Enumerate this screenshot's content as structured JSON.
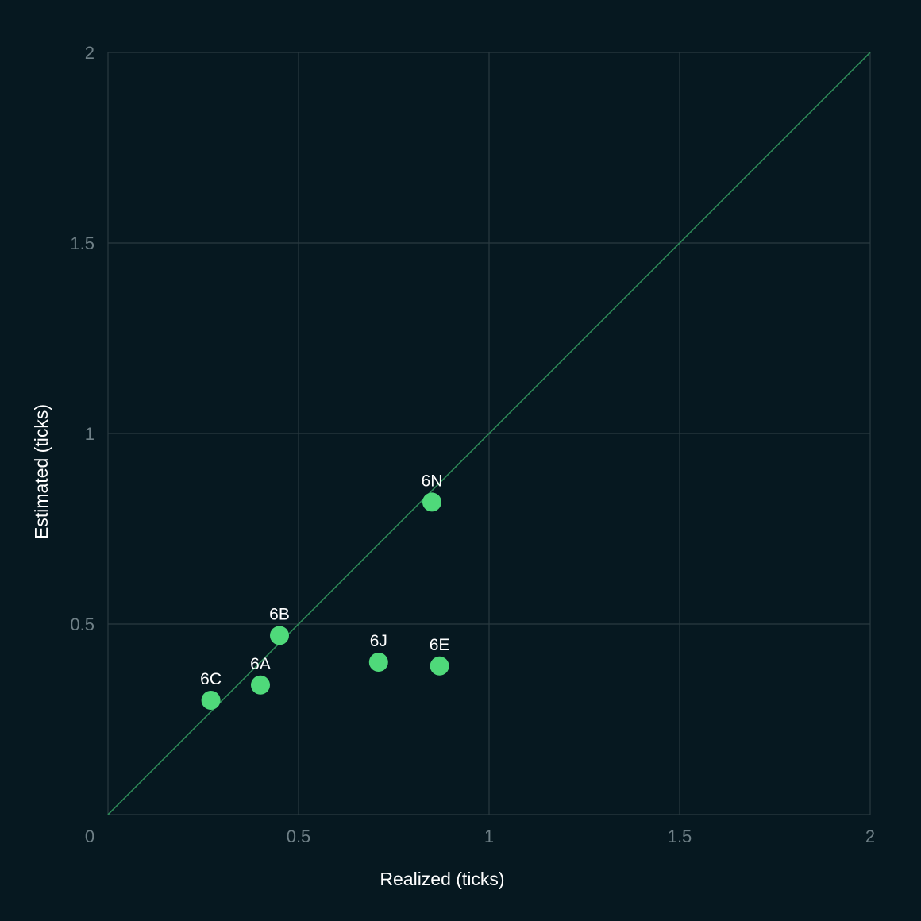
{
  "chart_data": {
    "type": "scatter",
    "xlabel": "Realized (ticks)",
    "ylabel": "Estimated (ticks)",
    "xlim": [
      0,
      2
    ],
    "ylim": [
      0,
      2
    ],
    "xticks": [
      "0",
      "0.5",
      "1",
      "1.5",
      "2"
    ],
    "yticks": [
      "0.5",
      "1",
      "1.5",
      "2"
    ],
    "grid": true,
    "reference_line": "y = x",
    "colors": {
      "background": "#061820",
      "grid": "#2a3a40",
      "reference_line": "#2e8a58",
      "points": "#4fd97a"
    },
    "points": [
      {
        "label": "6C",
        "x": 0.27,
        "y": 0.3
      },
      {
        "label": "6A",
        "x": 0.4,
        "y": 0.34
      },
      {
        "label": "6B",
        "x": 0.45,
        "y": 0.47
      },
      {
        "label": "6J",
        "x": 0.71,
        "y": 0.4
      },
      {
        "label": "6E",
        "x": 0.87,
        "y": 0.39
      },
      {
        "label": "6N",
        "x": 0.85,
        "y": 0.82
      }
    ]
  }
}
